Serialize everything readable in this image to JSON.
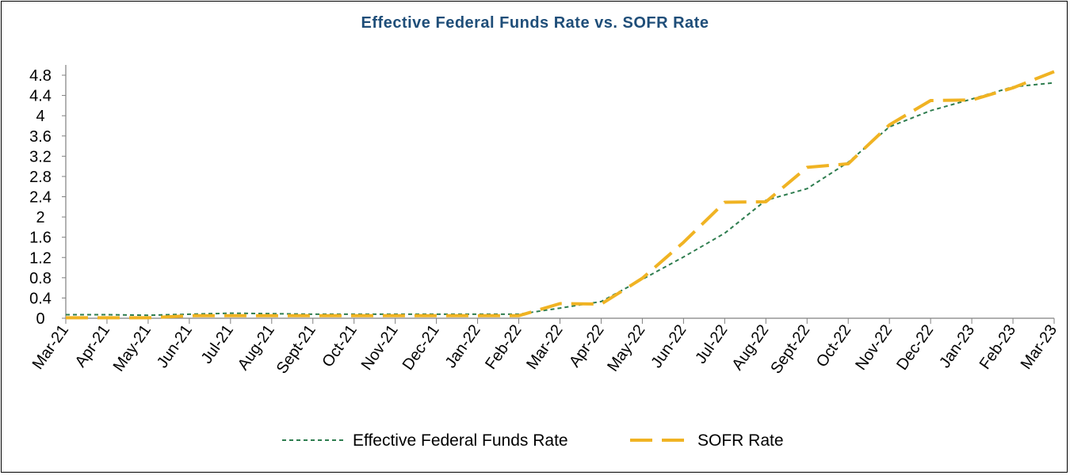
{
  "chart_data": {
    "type": "line",
    "title": "Effective Federal Funds Rate vs. SOFR Rate",
    "xlabel": "",
    "ylabel": "",
    "ylim": [
      0,
      4.8
    ],
    "yticks": [
      0,
      0.4,
      0.8,
      1.2,
      1.6,
      2,
      2.4,
      2.8,
      3.2,
      3.6,
      4,
      4.4,
      4.8
    ],
    "ytick_labels": [
      "0",
      "0.4",
      "0.8",
      "1.2",
      "1.6",
      "2",
      "2.4",
      "2.8",
      "3.2",
      "3.6",
      "4",
      "4.4",
      "4.8"
    ],
    "grid": false,
    "legend_position": "bottom-center",
    "categories": [
      "Mar-21",
      "Apr-21",
      "May-21",
      "Jun-21",
      "Jul-21",
      "Aug-21",
      "Sept-21",
      "Oct-21",
      "Nov-21",
      "Dec-21",
      "Jan-22",
      "Feb-22",
      "Mar-22",
      "Apr-22",
      "May-22",
      "Jun-22",
      "Jul-22",
      "Aug-22",
      "Sept-22",
      "Oct-22",
      "Nov-22",
      "Dec-22",
      "Jan-23",
      "Feb-23",
      "Mar-23"
    ],
    "series": [
      {
        "name": "Effective Federal Funds Rate",
        "color": "#2e7d4f",
        "style": "dotted",
        "values": [
          0.07,
          0.07,
          0.06,
          0.08,
          0.1,
          0.09,
          0.08,
          0.08,
          0.08,
          0.08,
          0.08,
          0.08,
          0.2,
          0.33,
          0.77,
          1.21,
          1.68,
          2.33,
          2.56,
          3.08,
          3.78,
          4.1,
          4.33,
          4.57,
          4.65
        ]
      },
      {
        "name": "SOFR Rate",
        "color": "#f0b323",
        "style": "dashed",
        "values": [
          0.01,
          0.01,
          0.01,
          0.05,
          0.05,
          0.05,
          0.05,
          0.05,
          0.05,
          0.05,
          0.05,
          0.05,
          0.29,
          0.28,
          0.79,
          1.5,
          2.29,
          2.3,
          2.98,
          3.05,
          3.82,
          4.3,
          4.31,
          4.55,
          4.87
        ]
      }
    ]
  }
}
